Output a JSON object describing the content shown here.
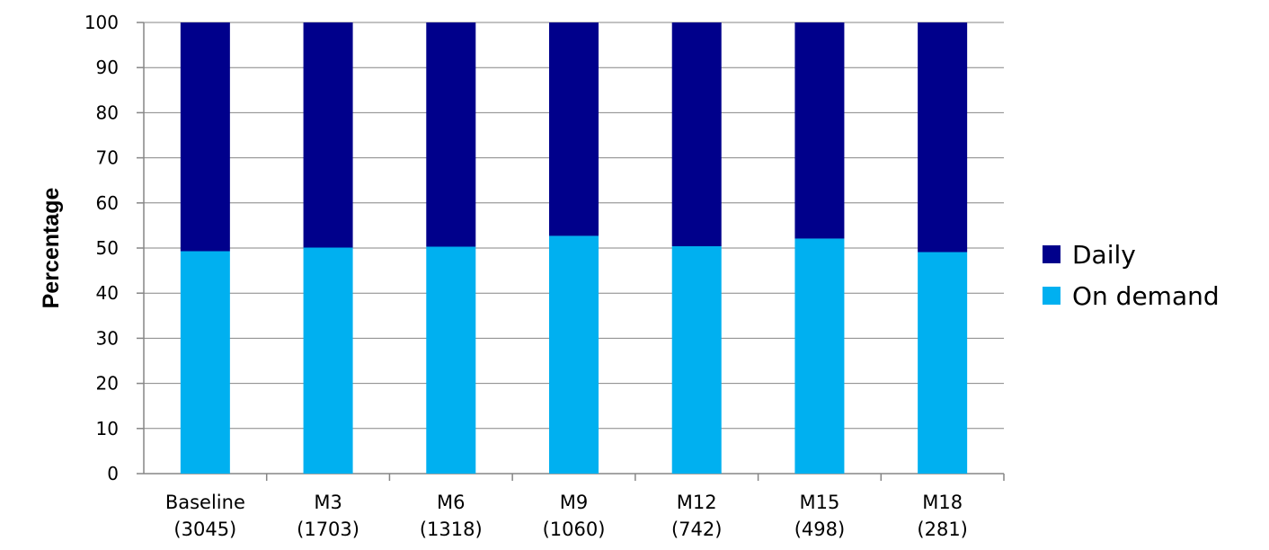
{
  "chart_data": {
    "type": "bar",
    "stacked": true,
    "title": "",
    "xlabel": "",
    "ylabel": "Percentage",
    "ylim": [
      0,
      100
    ],
    "yticks": [
      0,
      10,
      20,
      30,
      40,
      50,
      60,
      70,
      80,
      90,
      100
    ],
    "grid": true,
    "legend_position": "right",
    "categories": [
      [
        "Baseline",
        "(3045)"
      ],
      [
        "M3",
        "(1703)"
      ],
      [
        "M6",
        "(1318)"
      ],
      [
        "M9",
        "(1060)"
      ],
      [
        "M12",
        "(742)"
      ],
      [
        "M15",
        "(498)"
      ],
      [
        "M18",
        "(281)"
      ]
    ],
    "series": [
      {
        "name": "On demand",
        "color": "#00B0F0",
        "values": [
          49.3,
          50.1,
          50.3,
          52.7,
          50.4,
          52.1,
          49.1
        ]
      },
      {
        "name": "Daily",
        "color": "#00008B",
        "values": [
          50.7,
          49.9,
          49.7,
          47.3,
          49.6,
          47.9,
          50.9
        ]
      }
    ],
    "legend_order": [
      "Daily",
      "On demand"
    ]
  }
}
